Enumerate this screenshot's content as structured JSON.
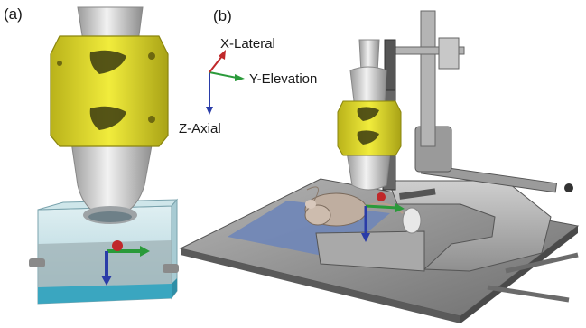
{
  "panels": {
    "a": {
      "label": "(a)"
    },
    "b": {
      "label": "(b)"
    }
  },
  "axes": {
    "x": {
      "label": "X-Lateral",
      "color": "#c0282a"
    },
    "y": {
      "label": "Y-Elevation",
      "color": "#2a9a3a"
    },
    "z": {
      "label": "Z-Axial",
      "color": "#2a3ca8"
    }
  },
  "colors": {
    "probe": "#d2d2d2",
    "holder": "#e4df2a",
    "tank_water": "#b9dde6",
    "tank_bottom": "#3aa6c0",
    "platform": "#8a8a8a",
    "stage": "#a9a9a9",
    "mat": "#6f86b8"
  },
  "icons": [
    "ultrasound-probe",
    "probe-holder",
    "water-tank",
    "coordinate-axes",
    "mouse",
    "stereotaxic-stage"
  ]
}
